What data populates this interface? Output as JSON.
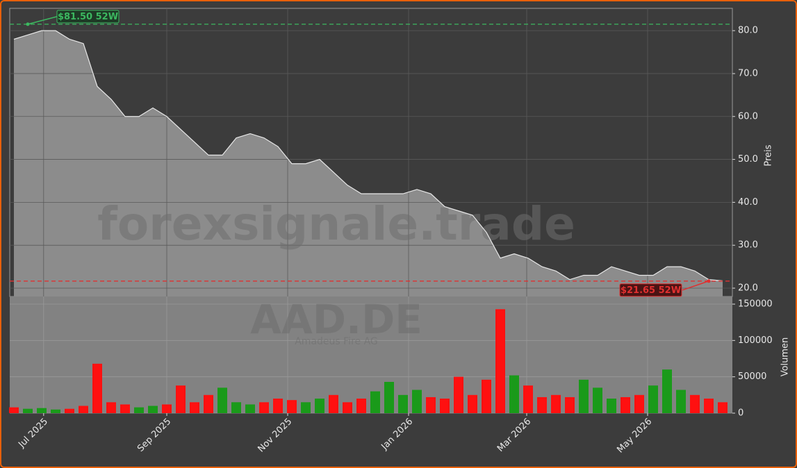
{
  "chart_data": {
    "type": "candlestick-volume",
    "watermark": "forexsignale.trade",
    "ticker": "AAD.DE",
    "company": "Amadeus Fire AG",
    "ylabel": "Preis",
    "y2label": "Volumen",
    "categories": [
      null,
      null,
      null,
      null,
      null,
      null,
      null,
      null,
      null,
      null,
      null,
      null,
      null,
      null,
      null,
      null,
      null,
      null,
      null,
      null,
      null,
      null,
      null,
      null,
      null,
      null,
      null,
      null,
      null,
      null,
      null,
      null,
      null,
      null,
      null,
      null,
      null,
      null,
      null,
      null,
      null,
      null,
      null,
      null,
      null,
      null,
      null,
      null,
      null,
      null,
      null,
      null
    ],
    "xlim": [
      -0.3,
      51.7
    ],
    "xticks": [
      {
        "value": 2.14,
        "label": "Jul 2025"
      },
      {
        "value": 11.0,
        "label": "Sep 2025"
      },
      {
        "value": 19.7,
        "label": "Nov 2025"
      },
      {
        "value": 28.4,
        "label": "Jan 2026"
      },
      {
        "value": 36.9,
        "label": "Mar 2026"
      },
      {
        "value": 45.6,
        "label": "May 2026"
      }
    ],
    "series": [
      {
        "name": "Preis",
        "color": "#e8e8e8",
        "values": [
          78,
          79,
          80,
          80,
          78,
          77,
          67,
          64,
          60,
          60,
          62,
          60,
          57,
          54,
          51,
          51,
          55,
          56,
          55,
          53,
          49,
          49,
          50,
          47,
          44,
          42,
          42,
          42,
          42,
          43,
          42,
          39,
          38,
          37,
          33,
          27,
          28,
          27,
          25,
          24,
          22,
          23,
          23,
          25,
          24,
          23,
          23,
          25,
          25,
          24,
          22,
          21.7
        ]
      },
      {
        "name": "Volumen",
        "axis": "y2",
        "up_color": "#1a9a1a",
        "down_color": "#ff1010",
        "values": [
          8000,
          6000,
          7000,
          5000,
          6000,
          10000,
          68000,
          15000,
          12000,
          8000,
          10000,
          12000,
          38000,
          15000,
          25000,
          35000,
          15000,
          12000,
          15000,
          20000,
          18000,
          15000,
          20000,
          25000,
          15000,
          20000,
          30000,
          43000,
          25000,
          32000,
          22000,
          20000,
          50000,
          25000,
          46000,
          143000,
          52000,
          38000,
          22000,
          25000,
          22000,
          46000,
          35000,
          20000,
          22000,
          25000,
          38000,
          60000,
          32000,
          25000,
          20000,
          15000
        ]
      }
    ],
    "ylim": [
      18.06,
      85.2
    ],
    "yticks": [
      {
        "value": 20,
        "label": "20.0"
      },
      {
        "value": 30,
        "label": "30.0"
      },
      {
        "value": 40,
        "label": "40.0"
      },
      {
        "value": 50,
        "label": "50.0"
      },
      {
        "value": 60,
        "label": "60.0"
      },
      {
        "value": 70,
        "label": "70.0"
      },
      {
        "value": 80,
        "label": "80.0"
      }
    ],
    "y2lim": [
      0,
      160500
    ],
    "y2ticks": [
      0,
      50000,
      100000,
      150000
    ],
    "annotations": [
      {
        "label": "$81.50 52W",
        "value": 81.5,
        "index": 1,
        "color": "#3cb860"
      },
      {
        "label": "$21.65 52W",
        "value": 21.65,
        "index": 50,
        "color": "#e03030"
      }
    ],
    "grid": true
  }
}
